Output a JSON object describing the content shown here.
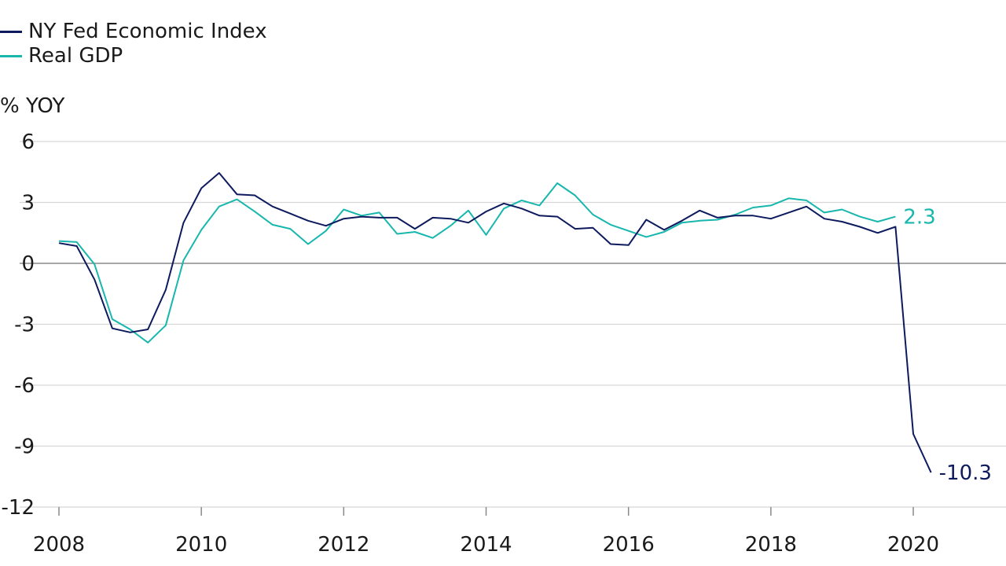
{
  "chart_data": {
    "type": "line",
    "title": "",
    "xlabel": "",
    "ylabel": "% YOY",
    "xlim": [
      2008,
      2021.3
    ],
    "ylim": [
      -12,
      6
    ],
    "yticks": [
      6,
      3,
      0,
      -3,
      -6,
      -9,
      -12
    ],
    "ytick_labels": [
      "6",
      "3",
      "0",
      "-3",
      "-6",
      "-9",
      "-12"
    ],
    "xticks": [
      2008,
      2010,
      2012,
      2014,
      2016,
      2018,
      2020
    ],
    "xtick_labels": [
      "2008",
      "2010",
      "2012",
      "2014",
      "2016",
      "2018",
      "2020"
    ],
    "grid": "horizontal",
    "legend_position": "top-left",
    "series": [
      {
        "name": "NY Fed Economic Index",
        "color": "#0d1b5e",
        "end_label": "-10.3",
        "points": [
          [
            2008.0,
            1.0
          ],
          [
            2008.25,
            0.85
          ],
          [
            2008.5,
            -0.8
          ],
          [
            2008.75,
            -3.2
          ],
          [
            2009.0,
            -3.4
          ],
          [
            2009.25,
            -3.25
          ],
          [
            2009.5,
            -1.3
          ],
          [
            2009.75,
            2.0
          ],
          [
            2010.0,
            3.7
          ],
          [
            2010.25,
            4.45
          ],
          [
            2010.5,
            3.4
          ],
          [
            2010.75,
            3.35
          ],
          [
            2011.0,
            2.8
          ],
          [
            2011.25,
            2.45
          ],
          [
            2011.5,
            2.1
          ],
          [
            2011.75,
            1.85
          ],
          [
            2012.0,
            2.2
          ],
          [
            2012.25,
            2.3
          ],
          [
            2012.5,
            2.25
          ],
          [
            2012.75,
            2.25
          ],
          [
            2013.0,
            1.7
          ],
          [
            2013.25,
            2.25
          ],
          [
            2013.5,
            2.2
          ],
          [
            2013.75,
            2.0
          ],
          [
            2014.0,
            2.55
          ],
          [
            2014.25,
            2.95
          ],
          [
            2014.5,
            2.7
          ],
          [
            2014.75,
            2.35
          ],
          [
            2015.0,
            2.3
          ],
          [
            2015.25,
            1.7
          ],
          [
            2015.5,
            1.75
          ],
          [
            2015.75,
            0.95
          ],
          [
            2016.0,
            0.9
          ],
          [
            2016.25,
            2.15
          ],
          [
            2016.5,
            1.65
          ],
          [
            2016.75,
            2.1
          ],
          [
            2017.0,
            2.6
          ],
          [
            2017.25,
            2.25
          ],
          [
            2017.5,
            2.35
          ],
          [
            2017.75,
            2.35
          ],
          [
            2018.0,
            2.2
          ],
          [
            2018.25,
            2.5
          ],
          [
            2018.5,
            2.8
          ],
          [
            2018.75,
            2.2
          ],
          [
            2019.0,
            2.05
          ],
          [
            2019.25,
            1.8
          ],
          [
            2019.5,
            1.5
          ],
          [
            2019.75,
            1.8
          ],
          [
            2020.0,
            -8.4
          ],
          [
            2020.25,
            -10.3
          ]
        ]
      },
      {
        "name": "Real GDP",
        "color": "#17b7ad",
        "end_label": "2.3",
        "points": [
          [
            2008.0,
            1.1
          ],
          [
            2008.25,
            1.05
          ],
          [
            2008.5,
            -0.05
          ],
          [
            2008.75,
            -2.75
          ],
          [
            2009.0,
            -3.25
          ],
          [
            2009.25,
            -3.9
          ],
          [
            2009.5,
            -3.05
          ],
          [
            2009.75,
            0.15
          ],
          [
            2010.0,
            1.65
          ],
          [
            2010.25,
            2.8
          ],
          [
            2010.5,
            3.15
          ],
          [
            2010.75,
            2.55
          ],
          [
            2011.0,
            1.9
          ],
          [
            2011.25,
            1.7
          ],
          [
            2011.5,
            0.95
          ],
          [
            2011.75,
            1.6
          ],
          [
            2012.0,
            2.65
          ],
          [
            2012.25,
            2.35
          ],
          [
            2012.5,
            2.5
          ],
          [
            2012.75,
            1.45
          ],
          [
            2013.0,
            1.55
          ],
          [
            2013.25,
            1.25
          ],
          [
            2013.5,
            1.85
          ],
          [
            2013.75,
            2.6
          ],
          [
            2014.0,
            1.4
          ],
          [
            2014.25,
            2.7
          ],
          [
            2014.5,
            3.1
          ],
          [
            2014.75,
            2.85
          ],
          [
            2015.0,
            3.95
          ],
          [
            2015.25,
            3.35
          ],
          [
            2015.5,
            2.4
          ],
          [
            2015.75,
            1.9
          ],
          [
            2016.0,
            1.6
          ],
          [
            2016.25,
            1.3
          ],
          [
            2016.5,
            1.55
          ],
          [
            2016.75,
            2.0
          ],
          [
            2017.0,
            2.1
          ],
          [
            2017.25,
            2.15
          ],
          [
            2017.5,
            2.4
          ],
          [
            2017.75,
            2.75
          ],
          [
            2018.0,
            2.85
          ],
          [
            2018.25,
            3.2
          ],
          [
            2018.5,
            3.1
          ],
          [
            2018.75,
            2.5
          ],
          [
            2019.0,
            2.65
          ],
          [
            2019.25,
            2.3
          ],
          [
            2019.5,
            2.05
          ],
          [
            2019.75,
            2.3
          ]
        ]
      }
    ]
  }
}
